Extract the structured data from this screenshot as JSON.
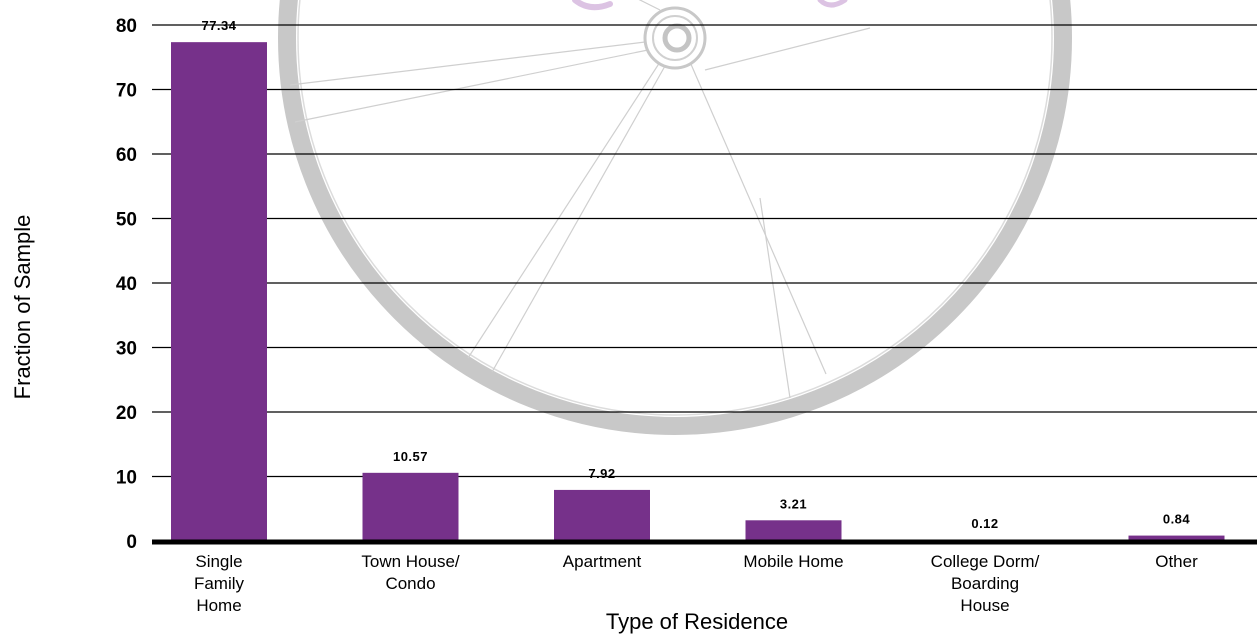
{
  "chart_data": {
    "type": "bar",
    "categories": [
      [
        "Single",
        "Family",
        "Home"
      ],
      [
        "Town House/",
        "Condo"
      ],
      [
        "Apartment"
      ],
      [
        "Mobile Home"
      ],
      [
        "College Dorm/",
        "Boarding",
        "House"
      ],
      [
        "Other"
      ]
    ],
    "values": [
      77.34,
      10.57,
      7.92,
      3.21,
      0.12,
      0.84
    ],
    "value_labels": [
      "77.34",
      "10.57",
      "7.92",
      "3.21",
      "0.12",
      "0.84"
    ],
    "xlabel": "Type of Residence",
    "ylabel": "Fraction of Sample",
    "yticks": [
      0,
      10,
      20,
      30,
      40,
      50,
      60,
      70,
      80
    ],
    "ylim": [
      0,
      80
    ],
    "grid": true,
    "bar_color": "#76318a",
    "watermark": "bicycle-wheel-watermark"
  }
}
